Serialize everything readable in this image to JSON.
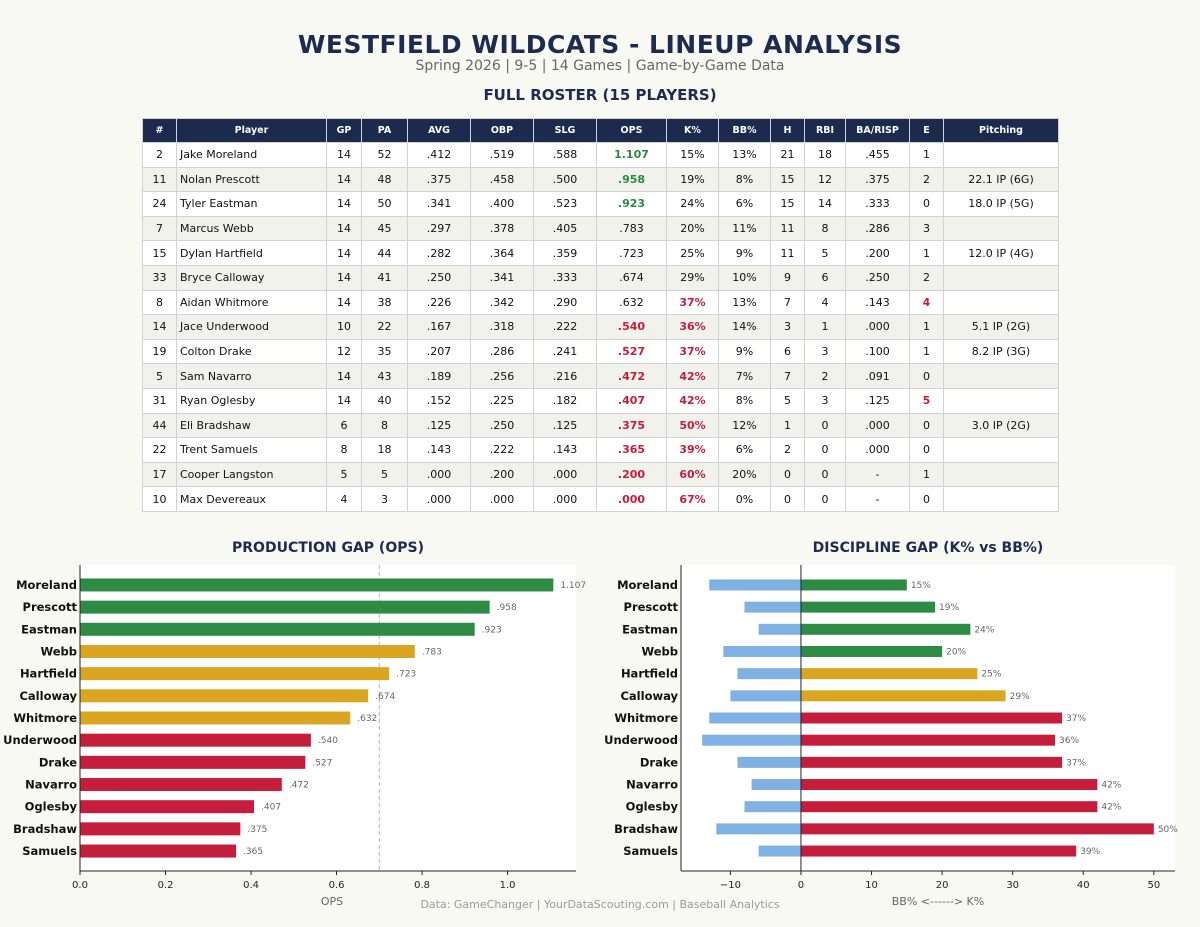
{
  "header": {
    "title": "WESTFIELD WILDCATS - LINEUP ANALYSIS",
    "subtitle": "Spring 2026  |  9-5  |  14 Games  |  Game-by-Game Data"
  },
  "roster": {
    "title": "FULL ROSTER (15 PLAYERS)",
    "columns": [
      "#",
      "Player",
      "GP",
      "PA",
      "AVG",
      "OBP",
      "SLG",
      "OPS",
      "K%",
      "BB%",
      "H",
      "RBI",
      "BA/RISP",
      "E",
      "Pitching"
    ],
    "rows": [
      {
        "num": "2",
        "player": "Jake Moreland",
        "gp": "14",
        "pa": "52",
        "avg": ".412",
        "obp": ".519",
        "slg": ".588",
        "ops": "1.107",
        "k": "15%",
        "bb": "13%",
        "h": "21",
        "rbi": "18",
        "risp": ".455",
        "e": "1",
        "pitching": "",
        "ops_status": "good",
        "k_status": "",
        "e_status": ""
      },
      {
        "num": "11",
        "player": "Nolan Prescott",
        "gp": "14",
        "pa": "48",
        "avg": ".375",
        "obp": ".458",
        "slg": ".500",
        "ops": ".958",
        "k": "19%",
        "bb": "8%",
        "h": "15",
        "rbi": "12",
        "risp": ".375",
        "e": "2",
        "pitching": "22.1 IP (6G)",
        "ops_status": "good",
        "k_status": "",
        "e_status": ""
      },
      {
        "num": "24",
        "player": "Tyler Eastman",
        "gp": "14",
        "pa": "50",
        "avg": ".341",
        "obp": ".400",
        "slg": ".523",
        "ops": ".923",
        "k": "24%",
        "bb": "6%",
        "h": "15",
        "rbi": "14",
        "risp": ".333",
        "e": "0",
        "pitching": "18.0 IP (5G)",
        "ops_status": "good",
        "k_status": "",
        "e_status": ""
      },
      {
        "num": "7",
        "player": "Marcus Webb",
        "gp": "14",
        "pa": "45",
        "avg": ".297",
        "obp": ".378",
        "slg": ".405",
        "ops": ".783",
        "k": "20%",
        "bb": "11%",
        "h": "11",
        "rbi": "8",
        "risp": ".286",
        "e": "3",
        "pitching": "",
        "ops_status": "",
        "k_status": "",
        "e_status": ""
      },
      {
        "num": "15",
        "player": "Dylan Hartfield",
        "gp": "14",
        "pa": "44",
        "avg": ".282",
        "obp": ".364",
        "slg": ".359",
        "ops": ".723",
        "k": "25%",
        "bb": "9%",
        "h": "11",
        "rbi": "5",
        "risp": ".200",
        "e": "1",
        "pitching": "12.0 IP (4G)",
        "ops_status": "",
        "k_status": "",
        "e_status": ""
      },
      {
        "num": "33",
        "player": "Bryce Calloway",
        "gp": "14",
        "pa": "41",
        "avg": ".250",
        "obp": ".341",
        "slg": ".333",
        "ops": ".674",
        "k": "29%",
        "bb": "10%",
        "h": "9",
        "rbi": "6",
        "risp": ".250",
        "e": "2",
        "pitching": "",
        "ops_status": "",
        "k_status": "",
        "e_status": ""
      },
      {
        "num": "8",
        "player": "Aidan Whitmore",
        "gp": "14",
        "pa": "38",
        "avg": ".226",
        "obp": ".342",
        "slg": ".290",
        "ops": ".632",
        "k": "37%",
        "bb": "13%",
        "h": "7",
        "rbi": "4",
        "risp": ".143",
        "e": "4",
        "pitching": "",
        "ops_status": "",
        "k_status": "bad",
        "e_status": "bad"
      },
      {
        "num": "14",
        "player": "Jace Underwood",
        "gp": "10",
        "pa": "22",
        "avg": ".167",
        "obp": ".318",
        "slg": ".222",
        "ops": ".540",
        "k": "36%",
        "bb": "14%",
        "h": "3",
        "rbi": "1",
        "risp": ".000",
        "e": "1",
        "pitching": "5.1 IP (2G)",
        "ops_status": "bad",
        "k_status": "bad",
        "e_status": ""
      },
      {
        "num": "19",
        "player": "Colton Drake",
        "gp": "12",
        "pa": "35",
        "avg": ".207",
        "obp": ".286",
        "slg": ".241",
        "ops": ".527",
        "k": "37%",
        "bb": "9%",
        "h": "6",
        "rbi": "3",
        "risp": ".100",
        "e": "1",
        "pitching": "8.2 IP (3G)",
        "ops_status": "bad",
        "k_status": "bad",
        "e_status": ""
      },
      {
        "num": "5",
        "player": "Sam Navarro",
        "gp": "14",
        "pa": "43",
        "avg": ".189",
        "obp": ".256",
        "slg": ".216",
        "ops": ".472",
        "k": "42%",
        "bb": "7%",
        "h": "7",
        "rbi": "2",
        "risp": ".091",
        "e": "0",
        "pitching": "",
        "ops_status": "bad",
        "k_status": "bad",
        "e_status": ""
      },
      {
        "num": "31",
        "player": "Ryan Oglesby",
        "gp": "14",
        "pa": "40",
        "avg": ".152",
        "obp": ".225",
        "slg": ".182",
        "ops": ".407",
        "k": "42%",
        "bb": "8%",
        "h": "5",
        "rbi": "3",
        "risp": ".125",
        "e": "5",
        "pitching": "",
        "ops_status": "bad",
        "k_status": "bad",
        "e_status": "bad"
      },
      {
        "num": "44",
        "player": "Eli Bradshaw",
        "gp": "6",
        "pa": "8",
        "avg": ".125",
        "obp": ".250",
        "slg": ".125",
        "ops": ".375",
        "k": "50%",
        "bb": "12%",
        "h": "1",
        "rbi": "0",
        "risp": ".000",
        "e": "0",
        "pitching": "3.0 IP (2G)",
        "ops_status": "bad",
        "k_status": "bad",
        "e_status": ""
      },
      {
        "num": "22",
        "player": "Trent Samuels",
        "gp": "8",
        "pa": "18",
        "avg": ".143",
        "obp": ".222",
        "slg": ".143",
        "ops": ".365",
        "k": "39%",
        "bb": "6%",
        "h": "2",
        "rbi": "0",
        "risp": ".000",
        "e": "0",
        "pitching": "",
        "ops_status": "bad",
        "k_status": "bad",
        "e_status": ""
      },
      {
        "num": "17",
        "player": "Cooper Langston",
        "gp": "5",
        "pa": "5",
        "avg": ".000",
        "obp": ".200",
        "slg": ".000",
        "ops": ".200",
        "k": "60%",
        "bb": "20%",
        "h": "0",
        "rbi": "0",
        "risp": "-",
        "e": "1",
        "pitching": "",
        "ops_status": "bad",
        "k_status": "bad",
        "e_status": ""
      },
      {
        "num": "10",
        "player": "Max Devereaux",
        "gp": "4",
        "pa": "3",
        "avg": ".000",
        "obp": ".000",
        "slg": ".000",
        "ops": ".000",
        "k": "67%",
        "bb": "0%",
        "h": "0",
        "rbi": "0",
        "risp": "-",
        "e": "0",
        "pitching": "",
        "ops_status": "bad",
        "k_status": "bad",
        "e_status": ""
      }
    ]
  },
  "colors": {
    "good": "#2e8b46",
    "mid": "#daa520",
    "bad": "#c51d3c",
    "walk": "#7fb1e2",
    "navy": "#1c2a4d"
  },
  "chart_data": [
    {
      "type": "bar",
      "orientation": "horizontal",
      "title": "PRODUCTION GAP (OPS)",
      "xlabel": "OPS",
      "ylabel": "",
      "xlim": [
        0,
        1.16
      ],
      "xticks": [
        0.0,
        0.2,
        0.4,
        0.6,
        0.8,
        1.0
      ],
      "xtick_labels": [
        "0.0",
        "0.2",
        "0.4",
        "0.6",
        "0.8",
        "1.0"
      ],
      "reference_line": 0.7,
      "categories": [
        "Moreland",
        "Prescott",
        "Eastman",
        "Webb",
        "Hartfield",
        "Calloway",
        "Whitmore",
        "Underwood",
        "Drake",
        "Navarro",
        "Oglesby",
        "Bradshaw",
        "Samuels"
      ],
      "values": [
        1.107,
        0.958,
        0.923,
        0.783,
        0.723,
        0.674,
        0.632,
        0.54,
        0.527,
        0.472,
        0.407,
        0.375,
        0.365
      ],
      "value_labels": [
        "1.107",
        ".958",
        ".923",
        ".783",
        ".723",
        ".674",
        ".632",
        ".540",
        ".527",
        ".472",
        ".407",
        ".375",
        ".365"
      ],
      "bar_colors": [
        "good",
        "good",
        "good",
        "mid",
        "mid",
        "mid",
        "mid",
        "bad",
        "bad",
        "bad",
        "bad",
        "bad",
        "bad"
      ]
    },
    {
      "type": "bar",
      "orientation": "horizontal-diverging",
      "title": "DISCIPLINE GAP (K% vs BB%)",
      "xlabel": "BB%  <------>  K%",
      "ylabel": "",
      "xlim": [
        -17,
        53
      ],
      "xticks": [
        -10,
        0,
        10,
        20,
        30,
        40,
        50
      ],
      "xtick_labels": [
        "−10",
        "0",
        "10",
        "20",
        "30",
        "40",
        "50"
      ],
      "categories": [
        "Moreland",
        "Prescott",
        "Eastman",
        "Webb",
        "Hartfield",
        "Calloway",
        "Whitmore",
        "Underwood",
        "Drake",
        "Navarro",
        "Oglesby",
        "Bradshaw",
        "Samuels"
      ],
      "series": [
        {
          "name": "K%",
          "values": [
            15,
            19,
            24,
            20,
            25,
            29,
            37,
            36,
            37,
            42,
            42,
            50,
            39
          ],
          "value_labels": [
            "15%",
            "19%",
            "24%",
            "20%",
            "25%",
            "29%",
            "37%",
            "36%",
            "37%",
            "42%",
            "42%",
            "50%",
            "39%"
          ],
          "bar_colors": [
            "good",
            "good",
            "good",
            "good",
            "mid",
            "mid",
            "bad",
            "bad",
            "bad",
            "bad",
            "bad",
            "bad",
            "bad"
          ]
        },
        {
          "name": "BB%",
          "values": [
            -13,
            -8,
            -6,
            -11,
            -9,
            -10,
            -13,
            -14,
            -9,
            -7,
            -8,
            -12,
            -6
          ],
          "bar_colors": [
            "walk",
            "walk",
            "walk",
            "walk",
            "walk",
            "walk",
            "walk",
            "walk",
            "walk",
            "walk",
            "walk",
            "walk",
            "walk"
          ]
        }
      ]
    }
  ],
  "footer": "Data: GameChanger  |  YourDataScouting.com  |  Baseball Analytics"
}
